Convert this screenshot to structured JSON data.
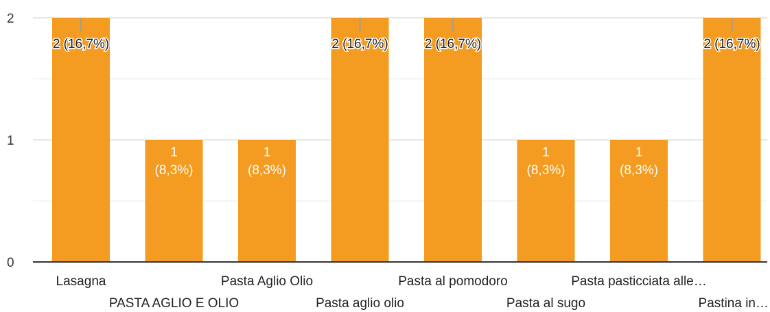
{
  "chart_data": {
    "type": "bar",
    "categories": [
      "Lasagna",
      "PASTA AGLIO E OLIO",
      "Pasta Aglio Olio",
      "Pasta aglio olio",
      "Pasta al pomodoro",
      "Pasta al sugo",
      "Pasta pasticciata alle…",
      "Pastina in…"
    ],
    "values": [
      2,
      1,
      1,
      2,
      2,
      1,
      1,
      2
    ],
    "data_labels": [
      "2 (16,7%)",
      [
        "1",
        "(8,3%)"
      ],
      [
        "1",
        "(8,3%)"
      ],
      "2 (16,7%)",
      "2 (16,7%)",
      [
        "1",
        "(8,3%)"
      ],
      [
        "1",
        "(8,3%)"
      ],
      "2 (16,7%)"
    ],
    "y_ticks": [
      "0",
      "1",
      "2"
    ],
    "ylim": [
      0,
      2
    ],
    "bar_color": "#f49b21",
    "grid": true,
    "title": "",
    "xlabel": "",
    "ylabel": ""
  }
}
